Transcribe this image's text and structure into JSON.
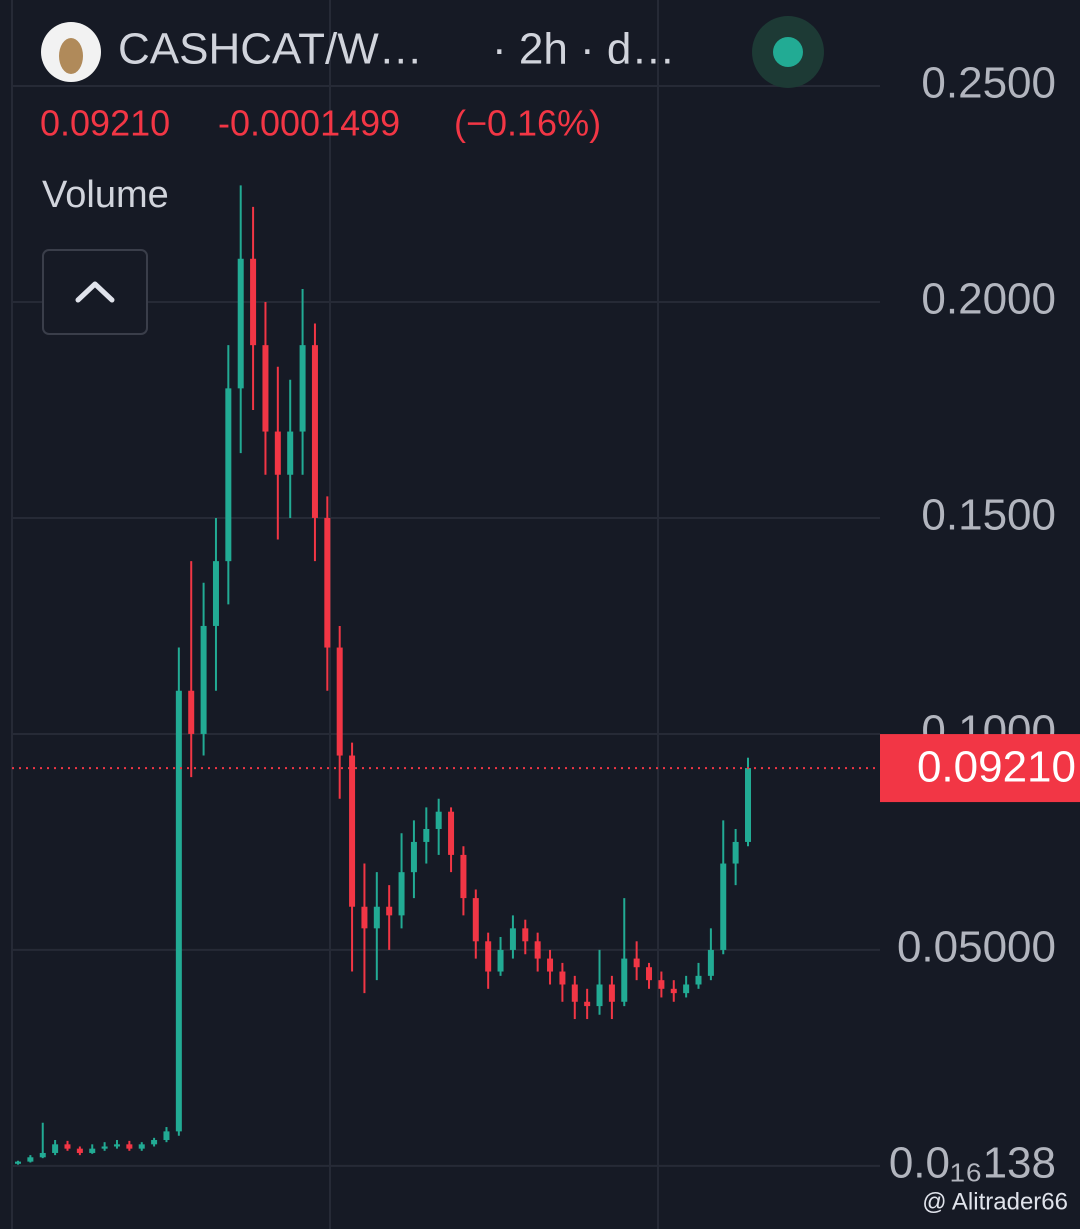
{
  "chart_data": {
    "type": "candlestick",
    "symbol": "CASHCAT/W…",
    "interval": "· 2h · d…",
    "last_price": {
      "value": 0.0921,
      "label": "0.09210"
    },
    "change": "-0.0001499",
    "change_pct": "(−0.16%)",
    "volume_label": "Volume",
    "watermark": "@ Alitrader66",
    "up_color": "#22ab94",
    "down_color": "#f23645",
    "ylim": [
      -0.0146,
      0.2699
    ],
    "yticks": [
      {
        "value": 1.38e-17,
        "label": "0.0₁₆138"
      },
      {
        "value": 0.05,
        "label": "0.05000"
      },
      {
        "value": 0.1,
        "label": "0.1000"
      },
      {
        "value": 0.15,
        "label": "0.1500"
      },
      {
        "value": 0.2,
        "label": "0.2000"
      },
      {
        "value": 0.25,
        "label": "0.2500"
      }
    ],
    "grid": true,
    "open": [
      0.0005,
      0.001,
      0.002,
      0.003,
      0.005,
      0.004,
      0.003,
      0.004,
      0.0045,
      0.005,
      0.004,
      0.005,
      0.006,
      0.008,
      0.11,
      0.1,
      0.125,
      0.14,
      0.18,
      0.21,
      0.19,
      0.17,
      0.16,
      0.17,
      0.19,
      0.15,
      0.12,
      0.095,
      0.06,
      0.055,
      0.06,
      0.058,
      0.068,
      0.075,
      0.078,
      0.082,
      0.072,
      0.062,
      0.052,
      0.045,
      0.05,
      0.055,
      0.052,
      0.048,
      0.045,
      0.042,
      0.038,
      0.037,
      0.042,
      0.038,
      0.048,
      0.046,
      0.043,
      0.041,
      0.04,
      0.042,
      0.044,
      0.05,
      0.07,
      0.075
    ],
    "high": [
      0.0012,
      0.0025,
      0.01,
      0.006,
      0.0058,
      0.0045,
      0.005,
      0.0055,
      0.006,
      0.0058,
      0.0055,
      0.0065,
      0.009,
      0.12,
      0.14,
      0.135,
      0.15,
      0.19,
      0.227,
      0.222,
      0.2,
      0.185,
      0.182,
      0.203,
      0.195,
      0.155,
      0.125,
      0.098,
      0.07,
      0.068,
      0.065,
      0.077,
      0.08,
      0.083,
      0.085,
      0.083,
      0.074,
      0.064,
      0.054,
      0.053,
      0.058,
      0.057,
      0.054,
      0.05,
      0.047,
      0.044,
      0.041,
      0.05,
      0.044,
      0.062,
      0.052,
      0.047,
      0.045,
      0.043,
      0.044,
      0.047,
      0.055,
      0.08,
      0.078,
      0.0945
    ],
    "low": [
      0.0003,
      0.0008,
      0.0018,
      0.0025,
      0.0035,
      0.0025,
      0.0028,
      0.0035,
      0.004,
      0.0035,
      0.0035,
      0.0045,
      0.0055,
      0.007,
      0.09,
      0.095,
      0.11,
      0.13,
      0.165,
      0.175,
      0.16,
      0.145,
      0.15,
      0.16,
      0.14,
      0.11,
      0.085,
      0.045,
      0.04,
      0.043,
      0.05,
      0.055,
      0.062,
      0.07,
      0.072,
      0.068,
      0.058,
      0.048,
      0.041,
      0.044,
      0.048,
      0.049,
      0.045,
      0.042,
      0.038,
      0.034,
      0.034,
      0.035,
      0.034,
      0.037,
      0.043,
      0.041,
      0.039,
      0.038,
      0.039,
      0.041,
      0.043,
      0.049,
      0.065,
      0.074
    ],
    "close": [
      0.001,
      0.002,
      0.003,
      0.005,
      0.004,
      0.003,
      0.004,
      0.0045,
      0.005,
      0.004,
      0.005,
      0.006,
      0.008,
      0.11,
      0.1,
      0.125,
      0.14,
      0.18,
      0.21,
      0.19,
      0.17,
      0.16,
      0.17,
      0.19,
      0.15,
      0.12,
      0.095,
      0.06,
      0.055,
      0.06,
      0.058,
      0.068,
      0.075,
      0.078,
      0.082,
      0.072,
      0.062,
      0.052,
      0.045,
      0.05,
      0.055,
      0.052,
      0.048,
      0.045,
      0.042,
      0.038,
      0.037,
      0.042,
      0.038,
      0.048,
      0.046,
      0.043,
      0.041,
      0.04,
      0.042,
      0.044,
      0.05,
      0.07,
      0.075,
      0.0921
    ]
  }
}
